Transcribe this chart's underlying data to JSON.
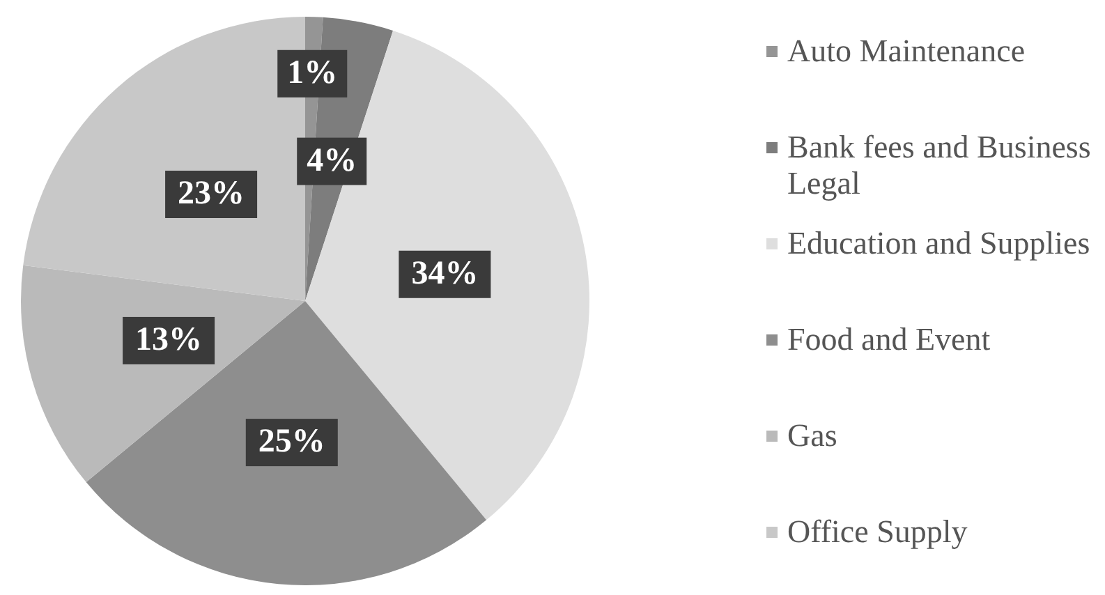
{
  "chart_data": {
    "type": "pie",
    "categories": [
      "Auto Maintenance",
      "Bank fees and Business Legal",
      "Education and Supplies",
      "Food and Event",
      "Gas",
      "Office Supply"
    ],
    "values": [
      1,
      4,
      34,
      25,
      13,
      23
    ],
    "value_labels": [
      "1%",
      "4%",
      "34%",
      "25%",
      "13%",
      "23%"
    ],
    "colors": [
      "#959595",
      "#7d7d7d",
      "#dedede",
      "#8e8e8e",
      "#bababa",
      "#c8c8c8"
    ],
    "legend": "right"
  }
}
